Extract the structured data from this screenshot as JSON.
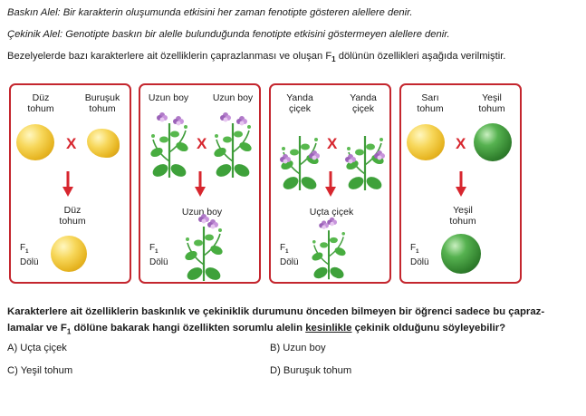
{
  "definitions": {
    "dominant_term": "Baskın Alel:",
    "dominant_text": " Bir karakterin oluşumunda etkisini her zaman fenotipte gösteren alellere denir.",
    "recessive_term": "Çekinik Alel:",
    "recessive_text": " Genotipte baskın bir alelle bulunduğunda fenotipte etkisini göstermeyen alellere denir."
  },
  "intro": {
    "before": "Bezelyelerde bazı karakterlere ait özelliklerin çaprazlanması ve oluşan F",
    "sub": "1",
    "after": " dölünün özellikleri aşağıda verilmiştir."
  },
  "panels": [
    {
      "left_l1": "Düz",
      "left_l2": "tohum",
      "right_l1": "Buruşuk",
      "right_l2": "tohum",
      "cross": "X",
      "result_l1": "Düz",
      "result_l2": "tohum",
      "f1": "F",
      "f1_sub": "1",
      "f1_label": "Dölü"
    },
    {
      "left_l1": "Uzun boy",
      "right_l1": "Uzun boy",
      "cross": "X",
      "result_l1": "Uzun boy",
      "f1": "F",
      "f1_sub": "1",
      "f1_label": "Dölü"
    },
    {
      "left_l1": "Yanda",
      "left_l2": "çiçek",
      "right_l1": "Yanda",
      "right_l2": "çiçek",
      "cross": "X",
      "result_l1": "Uçta çiçek",
      "f1": "F",
      "f1_sub": "1",
      "f1_label": "Dölü"
    },
    {
      "left_l1": "Sarı",
      "left_l2": "tohum",
      "right_l1": "Yeşil",
      "right_l2": "tohum",
      "cross": "X",
      "result_l1": "Yeşil",
      "result_l2": "tohum",
      "f1": "F",
      "f1_sub": "1",
      "f1_label": "Dölü"
    }
  ],
  "question": {
    "line1": "Karakterlere ait özelliklerin baskınlık ve çekiniklik durumunu önceden bilmeyen bir öğrenci sadece bu çapraz-",
    "line2_a": "lamalar ve F",
    "line2_sub": "1",
    "line2_b": " dölüne bakarak hangi özellikten sorumlu alelin ",
    "line2_emph": "kesinlikle",
    "line2_c": " çekinik olduğunu söyleyebilir?"
  },
  "options": {
    "a": "A) Uçta çiçek",
    "b": "B) Uzun boy",
    "c": "C) Yeşil tohum",
    "d": "D) Buruşuk tohum"
  },
  "colors": {
    "frame": "#c4262e",
    "arrow": "#d7262e",
    "cross": "#d7262e"
  }
}
